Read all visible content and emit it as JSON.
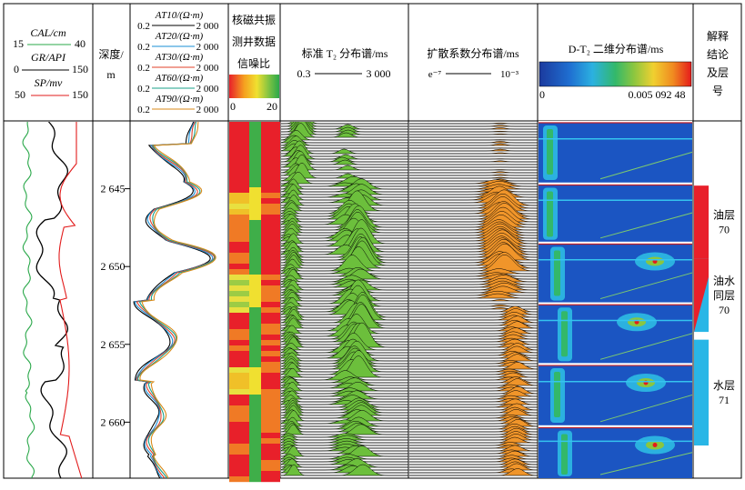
{
  "tracks": {
    "logs": {
      "curves": [
        {
          "name": "CAL/cm",
          "min": "15",
          "max": "40",
          "color": "#2aa84a"
        },
        {
          "name": "GR/API",
          "min": "0",
          "max": "150",
          "color": "#000000"
        },
        {
          "name": "SP/mv",
          "min": "50",
          "max": "150",
          "color": "#e21b1b"
        }
      ]
    },
    "depth": {
      "title_line1": "深度/",
      "title_line2": "m"
    },
    "resistivity": {
      "curves": [
        {
          "name": "AT10/(Ω·m)",
          "min": "0.2",
          "max": "2 000",
          "color": "#000000"
        },
        {
          "name": "AT20/(Ω·m)",
          "min": "0.2",
          "max": "2 000",
          "color": "#1a8fd6"
        },
        {
          "name": "AT30/(Ω·m)",
          "min": "0.2",
          "max": "2 000",
          "color": "#e0402a"
        },
        {
          "name": "AT60/(Ω·m)",
          "min": "0.2",
          "max": "2 000",
          "color": "#19a08a"
        },
        {
          "name": "AT90/(Ω·m)",
          "min": "0.2",
          "max": "2 000",
          "color": "#d98a1a"
        }
      ]
    },
    "snr": {
      "title_line1": "核磁共振",
      "title_line2": "测井数据",
      "title_line3": "信噪比",
      "scale_min": "0",
      "scale_max": "20"
    },
    "t2": {
      "title": "标准 T₂ 分布谱/ms",
      "scale_min": "0.3",
      "scale_max": "3 000"
    },
    "diffusion": {
      "title": "扩散系数分布谱/ms",
      "scale_min": "e⁻⁷",
      "scale_max": "10⁻³"
    },
    "dt2": {
      "title": "D-T₂ 二维分布谱/ms",
      "scale_min": "0",
      "scale_max": "0.005 092 48"
    },
    "interp": {
      "title_line1": "解释",
      "title_line2": "结论",
      "title_line3": "及层",
      "title_line4": "号"
    }
  },
  "chart_data": {
    "type": "well_log",
    "depth_axis": {
      "ticks": [
        "2 645",
        "2 650",
        "2 655",
        "2 660"
      ],
      "values": [
        2645,
        2650,
        2655,
        2660
      ],
      "range": [
        2640.7,
        2663.6
      ]
    },
    "interpretation": [
      {
        "label_line1": "油层",
        "label_line2": "70",
        "top": 2644.8,
        "bottom": 2649.5,
        "color": "#e8202a"
      },
      {
        "label_line1": "油水",
        "label_line2": "同层",
        "label_line3": "70",
        "top": 2649.5,
        "bottom": 2654.2,
        "color": "#e8202a",
        "color2": "#29b6e6"
      },
      {
        "label_line1": "水层",
        "label_line2": "71",
        "top": 2654.7,
        "bottom": 2661.5,
        "color": "#29b6e6"
      }
    ],
    "dt2_windows": [
      {
        "top": 2640.7,
        "bottom": 2644.6
      },
      {
        "top": 2644.7,
        "bottom": 2648.4
      },
      {
        "top": 2648.5,
        "bottom": 2652.3
      },
      {
        "top": 2652.4,
        "bottom": 2656.2
      },
      {
        "top": 2656.3,
        "bottom": 2660.2
      },
      {
        "top": 2660.3,
        "bottom": 2663.6
      }
    ]
  }
}
